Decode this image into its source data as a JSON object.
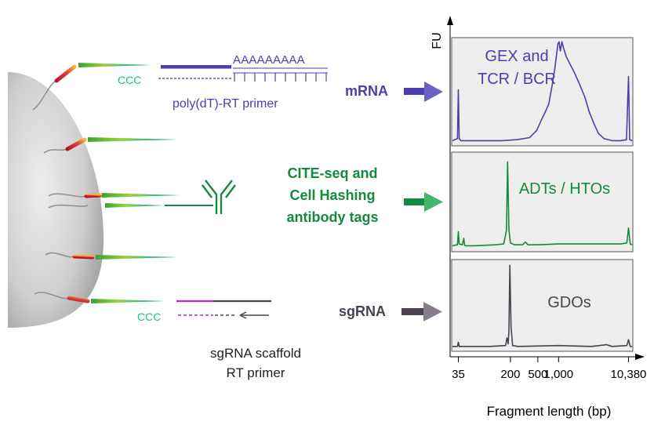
{
  "colors": {
    "mrna": "#4b3fae",
    "cite": "#138a3f",
    "sgrna": "#4a4250",
    "ccc": "#1bc27b",
    "magenta": "#cc1fb0",
    "panel_bg": "#eeeeee"
  },
  "bead": {
    "mrna_capture": {
      "ccc": "CCC",
      "polyA": "AAAAAAAAA",
      "primer_label": "poly(dT)-RT primer"
    },
    "sg_capture": {
      "ccc": "CCC",
      "primer_label_line1": "sgRNA scaffold",
      "primer_label_line2": "RT primer"
    }
  },
  "inputs": {
    "mrna_label": "mRNA",
    "cite_line1": "CITE-seq and",
    "cite_line2": "Cell Hashing",
    "cite_line3": "antibody tags",
    "sgrna_label": "sgRNA"
  },
  "chart_data": {
    "type": "line",
    "ylabel": "FU",
    "xlabel": "Fragment length (bp)",
    "x_scale": "log",
    "xlim": [
      28,
      12000
    ],
    "ylim": [
      0,
      1
    ],
    "x_ticks": [
      35,
      200,
      500,
      1000,
      10380
    ],
    "x_tick_labels": [
      "35",
      "200",
      "500",
      "1,000",
      "10,380"
    ],
    "grid": false,
    "panels": [
      {
        "label_line1": "GEX and",
        "label_line2": "TCR / BCR",
        "color": "#4b3fae",
        "x": [
          28,
          34,
          35,
          36,
          38,
          60,
          150,
          250,
          380,
          480,
          560,
          640,
          720,
          800,
          880,
          930,
          980,
          1020,
          1060,
          1120,
          1180,
          1300,
          1500,
          1750,
          2000,
          2400,
          2800,
          3300,
          3800,
          4600,
          6000,
          8000,
          9700,
          10380,
          10800,
          12000
        ],
        "y": [
          0.02,
          0.04,
          0.52,
          0.04,
          0.02,
          0.02,
          0.02,
          0.03,
          0.05,
          0.12,
          0.22,
          0.3,
          0.38,
          0.55,
          0.72,
          0.85,
          0.97,
          0.99,
          0.9,
          0.99,
          0.93,
          0.84,
          0.76,
          0.67,
          0.58,
          0.45,
          0.3,
          0.18,
          0.09,
          0.04,
          0.02,
          0.02,
          0.03,
          0.65,
          0.03,
          0.02
        ]
      },
      {
        "label_line1": "ADTs / HTOs",
        "label_line2": "",
        "color": "#138a3f",
        "x": [
          28,
          34,
          35,
          36,
          40,
          42,
          43,
          44,
          60,
          120,
          160,
          175,
          182,
          190,
          200,
          230,
          300,
          330,
          360,
          500,
          1000,
          3000,
          8000,
          9800,
          10380,
          11000,
          12000
        ],
        "y": [
          0.03,
          0.04,
          0.18,
          0.05,
          0.04,
          0.11,
          0.04,
          0.03,
          0.03,
          0.04,
          0.05,
          0.2,
          0.93,
          0.2,
          0.06,
          0.04,
          0.04,
          0.07,
          0.04,
          0.04,
          0.05,
          0.05,
          0.05,
          0.06,
          0.22,
          0.05,
          0.04
        ]
      },
      {
        "label_line1": "GDOs",
        "label_line2": "",
        "color": "#4a4250",
        "x": [
          28,
          34,
          35,
          36,
          100,
          170,
          178,
          185,
          190,
          196,
          204,
          215,
          260,
          1000,
          3000,
          5000,
          6000,
          9800,
          10380,
          11000,
          12000
        ],
        "y": [
          0.02,
          0.02,
          0.07,
          0.02,
          0.02,
          0.03,
          0.12,
          0.05,
          0.2,
          0.97,
          0.25,
          0.03,
          0.02,
          0.03,
          0.02,
          0.04,
          0.02,
          0.03,
          0.1,
          0.02,
          0.02
        ]
      }
    ]
  }
}
